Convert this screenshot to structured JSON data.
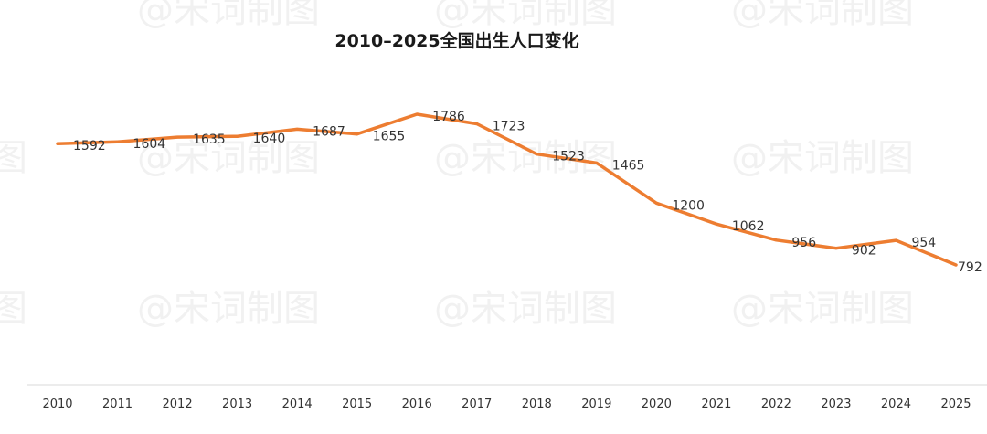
{
  "watermark": "@宋词制图",
  "chart_data": {
    "type": "line",
    "title": "2010–2025全国出生人口变化",
    "categories": [
      "2010",
      "2011",
      "2012",
      "2013",
      "2014",
      "2015",
      "2016",
      "2017",
      "2018",
      "2019",
      "2020",
      "2021",
      "2022",
      "2023",
      "2024",
      "2025"
    ],
    "series": [
      {
        "values": [
          1592,
          1604,
          1635,
          1640,
          1687,
          1655,
          1786,
          1723,
          1523,
          1465,
          1200,
          1062,
          956,
          902,
          954,
          792
        ],
        "color": "#ed7d31"
      }
    ],
    "xlabel": "",
    "ylabel": "",
    "grid": false,
    "legend": "none"
  }
}
